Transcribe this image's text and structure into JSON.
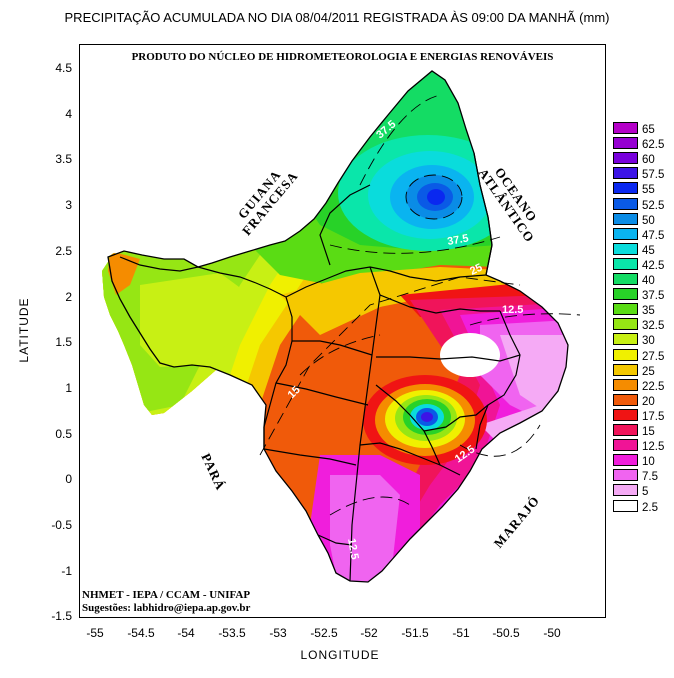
{
  "title": "PRECIPITAÇÃO ACUMULADA NO DIA 08/04/2011 REGISTRADA ÀS 09:00 DA MANHÃ (mm)",
  "subtitle": "PRODUTO DO NÚCLEO DE HIDROMETEOROLOGIA E ENERGIAS RENOVÁVEIS",
  "axes": {
    "xlabel": "LONGITUDE",
    "ylabel": "LATITUDE",
    "xticks": [
      "-55",
      "-54.5",
      "-54",
      "-53.5",
      "-53",
      "-52.5",
      "-52",
      "-51.5",
      "-51",
      "-50.5",
      "-50"
    ],
    "yticks": [
      "4.5",
      "4",
      "3.5",
      "3",
      "2.5",
      "2",
      "1.5",
      "1",
      "0.5",
      "0",
      "-0.5",
      "-1",
      "-1.5"
    ],
    "xlim": [
      -55.1,
      -49.6
    ],
    "ylim": [
      -1.5,
      4.7
    ]
  },
  "regions": {
    "guiana": "GUIANA FRANCESA",
    "oceano": "OCEANO ATLÂNTICO",
    "para": "PARÁ",
    "marajo": "MARAJÓ"
  },
  "contour_labels": [
    "37.5",
    "37.5",
    "25",
    "12.5",
    "12.5",
    "12.5",
    "15"
  ],
  "credits": {
    "line1": "NHMET - IEPA  /  CCAM - UNIFAP",
    "line2": "Sugestões: labhidro@iepa.ap.gov.br"
  },
  "legend": [
    {
      "label": "65",
      "color": "#b400c8"
    },
    {
      "label": "62.5",
      "color": "#9600d2"
    },
    {
      "label": "60",
      "color": "#7800dc"
    },
    {
      "label": "57.5",
      "color": "#3c14e6"
    },
    {
      "label": "55",
      "color": "#0a28f0"
    },
    {
      "label": "52.5",
      "color": "#0a5ae6"
    },
    {
      "label": "50",
      "color": "#0a8ce6"
    },
    {
      "label": "47.5",
      "color": "#0ab4f0"
    },
    {
      "label": "45",
      "color": "#0adcdc"
    },
    {
      "label": "42.5",
      "color": "#0ae6aa"
    },
    {
      "label": "40",
      "color": "#14dc64"
    },
    {
      "label": "37.5",
      "color": "#28d228"
    },
    {
      "label": "35",
      "color": "#5adc14"
    },
    {
      "label": "32.5",
      "color": "#96e614"
    },
    {
      "label": "30",
      "color": "#c8f014"
    },
    {
      "label": "27.5",
      "color": "#f0f000"
    },
    {
      "label": "25",
      "color": "#f5c800"
    },
    {
      "label": "22.5",
      "color": "#f58c00"
    },
    {
      "label": "20",
      "color": "#f05a0a"
    },
    {
      "label": "17.5",
      "color": "#f01414"
    },
    {
      "label": "15",
      "color": "#f0145a"
    },
    {
      "label": "12.5",
      "color": "#f01496"
    },
    {
      "label": "10",
      "color": "#f01edc"
    },
    {
      "label": "7.5",
      "color": "#f064f0"
    },
    {
      "label": "5",
      "color": "#f5aaf5"
    },
    {
      "label": "2.5",
      "color": "#ffffff"
    }
  ]
}
